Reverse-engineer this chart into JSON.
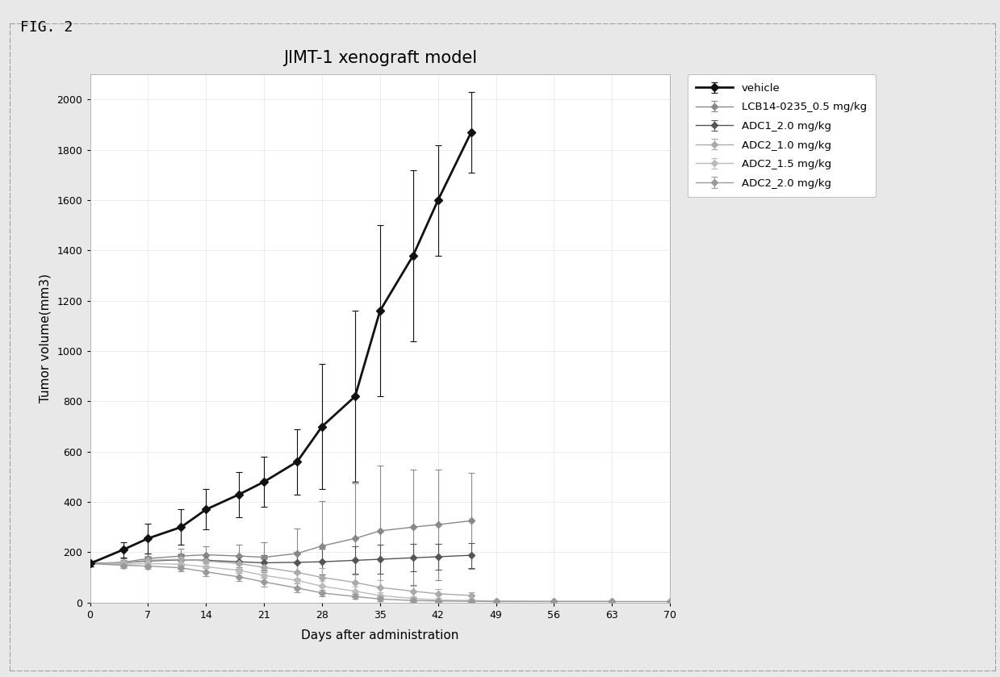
{
  "title": "JIMT-1 xenograft model",
  "xlabel": "Days after administration",
  "ylabel": "Tumor volume(mm3)",
  "xlim": [
    0,
    70
  ],
  "ylim": [
    0,
    2100
  ],
  "yticks": [
    0,
    200,
    400,
    600,
    800,
    1000,
    1200,
    1400,
    1600,
    1800,
    2000
  ],
  "xticks": [
    0,
    7,
    14,
    21,
    28,
    35,
    42,
    49,
    56,
    63,
    70
  ],
  "series": [
    {
      "label": "vehicle",
      "color": "#111111",
      "linestyle": "-",
      "marker": "D",
      "markersize": 5,
      "linewidth": 2.0,
      "x": [
        0,
        4,
        7,
        11,
        14,
        18,
        21,
        25,
        28,
        32,
        35,
        39,
        42,
        46
      ],
      "y": [
        155,
        210,
        255,
        300,
        370,
        430,
        480,
        560,
        700,
        820,
        1160,
        1380,
        1600,
        1870
      ],
      "yerr": [
        10,
        30,
        60,
        70,
        80,
        90,
        100,
        130,
        250,
        340,
        340,
        340,
        220,
        160
      ]
    },
    {
      "label": "LCB14-0235_0.5 mg/kg",
      "color": "#888888",
      "linestyle": "-",
      "marker": "D",
      "markersize": 4,
      "linewidth": 1.0,
      "x": [
        0,
        4,
        7,
        11,
        14,
        18,
        21,
        25,
        28,
        32,
        35,
        39,
        42,
        46
      ],
      "y": [
        155,
        160,
        175,
        185,
        190,
        185,
        180,
        195,
        225,
        255,
        285,
        300,
        310,
        325
      ],
      "yerr": [
        10,
        15,
        20,
        28,
        35,
        45,
        60,
        100,
        180,
        220,
        260,
        230,
        220,
        190
      ]
    },
    {
      "label": "ADC1_2.0 mg/kg",
      "color": "#555555",
      "linestyle": "-",
      "marker": "D",
      "markersize": 4,
      "linewidth": 1.0,
      "x": [
        0,
        4,
        7,
        11,
        14,
        18,
        21,
        25,
        28,
        32,
        35,
        39,
        42,
        46
      ],
      "y": [
        155,
        158,
        165,
        170,
        168,
        162,
        158,
        160,
        162,
        168,
        172,
        178,
        182,
        188
      ],
      "yerr": [
        10,
        12,
        18,
        22,
        25,
        28,
        32,
        42,
        52,
        55,
        58,
        55,
        52,
        50
      ]
    },
    {
      "label": "ADC2_1.0 mg/kg",
      "color": "#aaaaaa",
      "linestyle": "-",
      "marker": "D",
      "markersize": 4,
      "linewidth": 1.0,
      "x": [
        0,
        4,
        7,
        11,
        14,
        18,
        21,
        25,
        28,
        32,
        35,
        39,
        42,
        46
      ],
      "y": [
        155,
        158,
        168,
        172,
        165,
        155,
        140,
        120,
        100,
        80,
        60,
        45,
        35,
        28
      ],
      "yerr": [
        10,
        12,
        18,
        22,
        25,
        28,
        32,
        35,
        38,
        32,
        28,
        22,
        18,
        14
      ]
    },
    {
      "label": "ADC2_1.5 mg/kg",
      "color": "#bbbbbb",
      "linestyle": "-",
      "marker": "D",
      "markersize": 4,
      "linewidth": 1.0,
      "x": [
        0,
        4,
        7,
        11,
        14,
        18,
        21,
        25,
        28,
        32,
        35,
        39,
        42,
        46,
        49,
        56,
        63
      ],
      "y": [
        155,
        152,
        155,
        152,
        142,
        128,
        108,
        88,
        65,
        45,
        28,
        16,
        10,
        8,
        6,
        5,
        5
      ],
      "yerr": [
        10,
        12,
        15,
        18,
        20,
        22,
        25,
        25,
        20,
        18,
        14,
        10,
        8,
        6,
        5,
        5,
        5
      ]
    },
    {
      "label": "ADC2_2.0 mg/kg",
      "color": "#999999",
      "linestyle": "-",
      "marker": "D",
      "markersize": 4,
      "linewidth": 1.0,
      "x": [
        0,
        4,
        7,
        11,
        14,
        18,
        21,
        25,
        28,
        32,
        35,
        39,
        42,
        46,
        49,
        56,
        63,
        70
      ],
      "y": [
        155,
        148,
        145,
        138,
        122,
        102,
        82,
        58,
        38,
        24,
        14,
        8,
        6,
        5,
        4,
        4,
        4,
        4
      ],
      "yerr": [
        10,
        10,
        12,
        14,
        16,
        16,
        18,
        18,
        14,
        10,
        8,
        6,
        5,
        4,
        3,
        3,
        3,
        3
      ]
    }
  ],
  "fig_title": "FIG. 2",
  "background_color": "#e8e8e8",
  "plot_background": "#ffffff"
}
